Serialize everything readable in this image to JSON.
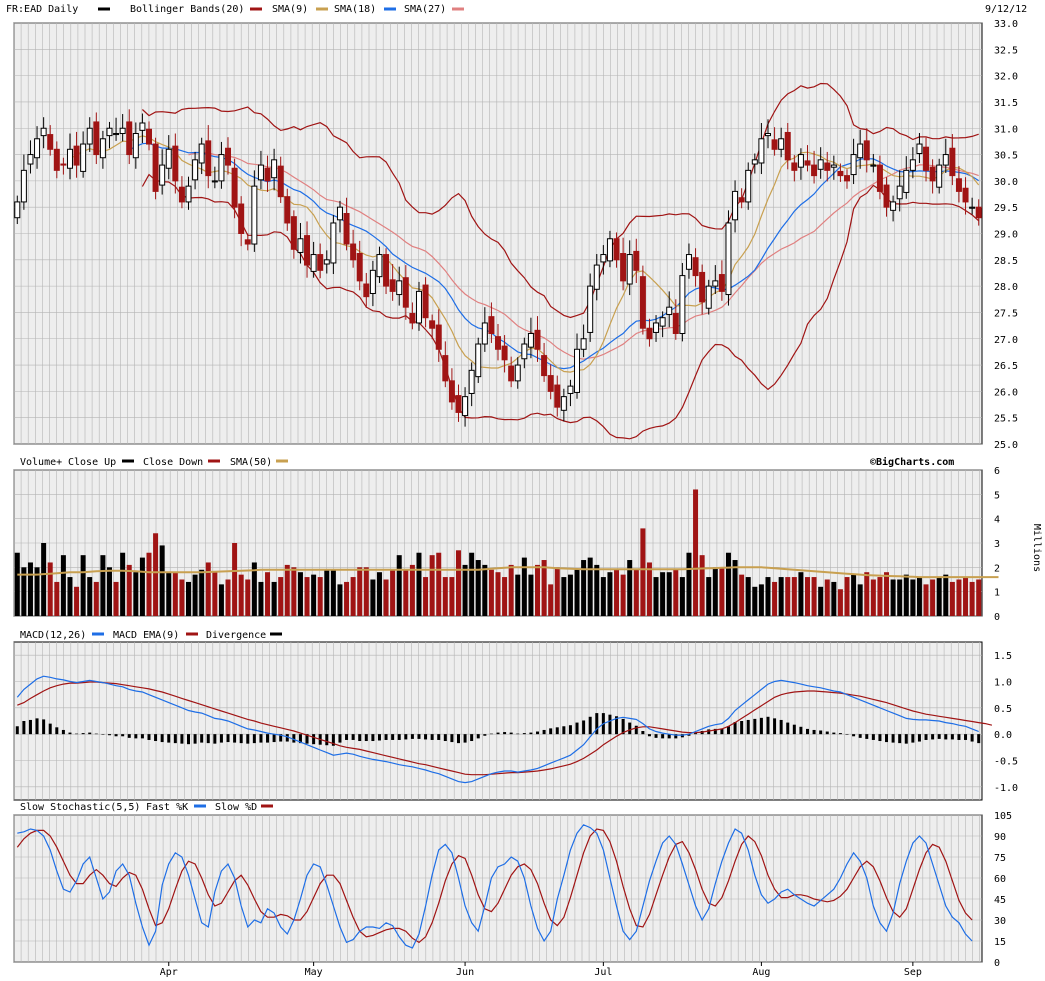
{
  "header": {
    "symbol_label": "FR:EAD Daily",
    "date": "9/12/12",
    "legend": [
      {
        "label": "Bollinger Bands(20)",
        "color": "#a01414"
      },
      {
        "label": "SMA(9)",
        "color": "#c8a050"
      },
      {
        "label": "SMA(18)",
        "color": "#1e6ee6"
      },
      {
        "label": "SMA(27)",
        "color": "#e08080"
      }
    ]
  },
  "watermark": "©BigCharts.com",
  "colors": {
    "up": "#000000",
    "down": "#a01414",
    "grid": "#b4b4b4",
    "panel_bg": "#eeeeee",
    "sma50": "#c8a050",
    "macd": "#1e6ee6",
    "signal": "#a01414",
    "fastk": "#1e6ee6",
    "slowd": "#a01414"
  },
  "x_axis": {
    "labels": [
      {
        "label": "Apr",
        "index": 23
      },
      {
        "label": "May",
        "index": 45
      },
      {
        "label": "Jun",
        "index": 68
      },
      {
        "label": "Jul",
        "index": 89
      },
      {
        "label": "Aug",
        "index": 113
      },
      {
        "label": "Sep",
        "index": 136
      }
    ]
  },
  "chart_data": [
    {
      "type": "candlestick",
      "title": "FR:EAD Daily",
      "ylim": [
        25.0,
        33.0
      ],
      "yticks": [
        "25.0",
        "25.5",
        "26.0",
        "26.5",
        "27.0",
        "27.5",
        "28.0",
        "28.5",
        "29.0",
        "29.5",
        "30.0",
        "30.5",
        "31.0",
        "31.5",
        "32.0",
        "32.5",
        "33.0"
      ],
      "closes": [
        29.6,
        30.2,
        30.5,
        30.8,
        31.0,
        30.6,
        30.2,
        30.3,
        30.6,
        30.3,
        30.7,
        31.0,
        30.5,
        30.8,
        31.0,
        30.9,
        31.0,
        30.5,
        30.9,
        31.1,
        30.7,
        29.8,
        30.3,
        30.6,
        30.0,
        29.6,
        29.9,
        30.4,
        30.7,
        30.1,
        30.0,
        30.5,
        30.3,
        29.5,
        29.0,
        28.8,
        29.9,
        30.3,
        30.0,
        30.4,
        29.7,
        29.2,
        28.7,
        28.9,
        28.4,
        28.6,
        28.3,
        28.5,
        29.2,
        29.5,
        28.8,
        28.5,
        28.1,
        27.8,
        28.3,
        28.6,
        28.0,
        27.9,
        28.1,
        27.6,
        27.3,
        27.9,
        27.4,
        27.2,
        26.8,
        26.2,
        25.8,
        25.6,
        25.9,
        26.4,
        26.9,
        27.3,
        27.1,
        26.8,
        26.6,
        26.2,
        26.5,
        26.9,
        27.1,
        26.8,
        26.3,
        26.0,
        25.7,
        25.9,
        26.1,
        26.8,
        27.0,
        28.0,
        28.4,
        28.6,
        28.9,
        28.5,
        28.1,
        28.6,
        28.3,
        27.2,
        27.0,
        27.3,
        27.4,
        27.6,
        27.1,
        28.2,
        28.6,
        28.2,
        27.7,
        28.0,
        28.1,
        27.9,
        29.2,
        29.8,
        29.6,
        30.2,
        30.4,
        30.8,
        30.9,
        30.6,
        30.8,
        30.4,
        30.2,
        30.5,
        30.3,
        30.1,
        30.4,
        30.2,
        30.3,
        30.1,
        30.0,
        30.5,
        30.7,
        30.4,
        30.3,
        29.8,
        29.5,
        29.6,
        29.9,
        30.2,
        30.4,
        30.7,
        30.2,
        30.0,
        30.3,
        30.5,
        30.1,
        29.8,
        29.6,
        29.5,
        29.3
      ],
      "series": [
        {
          "name": "SMA(9)",
          "color": "#c8a050"
        },
        {
          "name": "SMA(18)",
          "color": "#1e6ee6"
        },
        {
          "name": "SMA(27)",
          "color": "#e08080"
        },
        {
          "name": "Bollinger Bands(20)",
          "color": "#a01414"
        }
      ]
    },
    {
      "type": "bar",
      "title": "Volume+",
      "legend": [
        "Close Up",
        "Close Down",
        "SMA(50)"
      ],
      "ylabel": "Millions",
      "ylim": [
        0,
        6
      ],
      "yticks": [
        "0",
        "1",
        "2",
        "3",
        "4",
        "5",
        "6"
      ],
      "values": [
        2.6,
        2.0,
        2.2,
        2.0,
        3.0,
        2.2,
        1.4,
        2.5,
        1.6,
        1.2,
        2.5,
        1.6,
        1.4,
        2.5,
        2.0,
        1.4,
        2.6,
        2.1,
        1.8,
        2.4,
        2.6,
        3.4,
        2.9,
        1.8,
        1.8,
        1.5,
        1.4,
        1.7,
        1.9,
        2.2,
        1.8,
        1.3,
        1.5,
        3.0,
        1.7,
        1.5,
        2.2,
        1.4,
        1.8,
        1.4,
        1.6,
        2.1,
        2.0,
        1.8,
        1.6,
        1.7,
        1.6,
        1.9,
        1.9,
        1.3,
        1.4,
        1.6,
        2.0,
        2.0,
        1.5,
        1.8,
        1.5,
        1.9,
        2.5,
        1.9,
        2.1,
        2.6,
        1.6,
        2.5,
        2.6,
        1.6,
        1.6,
        2.7,
        2.1,
        2.6,
        2.3,
        2.1,
        1.9,
        1.8,
        1.6,
        2.1,
        1.7,
        2.4,
        1.7,
        2.1,
        2.3,
        1.3,
        2.0,
        1.6,
        1.7,
        1.9,
        2.3,
        2.4,
        2.1,
        1.6,
        1.8,
        1.9,
        1.7,
        2.3,
        1.9,
        3.6,
        2.2,
        1.6,
        1.8,
        1.8,
        1.9,
        1.6,
        2.6,
        5.2,
        2.5,
        1.6,
        2.0,
        2.0,
        2.6,
        2.3,
        1.7,
        1.6,
        1.2,
        1.3,
        1.6,
        1.4,
        1.6,
        1.6,
        1.6,
        1.8,
        1.6,
        1.6,
        1.2,
        1.5,
        1.4,
        1.1,
        1.6,
        1.7,
        1.3,
        1.8,
        1.5,
        1.6,
        1.8,
        1.5,
        1.5,
        1.7,
        1.5,
        1.6,
        1.3,
        1.5,
        1.6,
        1.7,
        1.4,
        1.5,
        1.6,
        1.4,
        1.5
      ],
      "sma50": [
        1.7,
        1.7,
        1.7,
        1.7,
        1.72,
        1.74,
        1.76,
        1.78,
        1.8,
        1.8,
        1.8,
        1.82,
        1.84,
        1.85,
        1.86,
        1.86,
        1.86,
        1.85,
        1.84,
        1.82,
        1.8,
        1.8,
        1.8,
        1.8,
        1.8,
        1.8,
        1.8,
        1.8,
        1.8,
        1.81,
        1.82,
        1.83,
        1.84,
        1.85,
        1.86,
        1.87,
        1.88,
        1.9,
        1.9,
        1.9,
        1.9,
        1.9,
        1.9,
        1.9,
        1.9,
        1.9,
        1.9,
        1.9,
        1.9,
        1.9,
        1.9,
        1.9,
        1.9,
        1.9,
        1.9,
        1.9,
        1.9,
        1.9,
        1.9,
        1.9,
        1.9,
        1.9,
        1.9,
        1.9,
        1.9,
        1.9,
        1.9,
        1.9,
        1.9,
        1.9,
        1.9,
        1.92,
        1.94,
        1.96,
        1.98,
        2.0,
        2.0,
        2.0,
        2.0,
        2.0,
        2.0,
        1.98,
        1.96,
        1.95,
        1.94,
        1.93,
        1.92,
        1.92,
        1.92,
        1.92,
        1.92,
        1.92,
        1.92,
        1.92,
        1.92,
        1.92,
        1.92,
        1.92,
        1.92,
        1.92,
        1.92,
        1.92,
        1.93,
        1.94,
        1.95,
        1.96,
        1.97,
        1.98,
        1.99,
        2.0,
        2.0,
        2.0,
        2.0,
        2.0,
        1.98,
        1.96,
        1.94,
        1.92,
        1.9,
        1.88,
        1.86,
        1.84,
        1.82,
        1.8,
        1.78,
        1.76,
        1.74,
        1.72,
        1.7,
        1.68,
        1.67,
        1.66,
        1.65,
        1.64,
        1.63,
        1.62,
        1.61,
        1.6,
        1.6,
        1.6,
        1.6,
        1.6,
        1.6,
        1.6,
        1.6,
        1.6,
        1.6,
        1.6,
        1.6,
        1.6
      ]
    },
    {
      "type": "line",
      "title": "MACD(12,26)",
      "legend": [
        "MACD EMA(9)",
        "Divergence"
      ],
      "ylim": [
        -1.25,
        1.75
      ],
      "yticks": [
        "-1.0",
        "-0.5",
        "0.0",
        "0.5",
        "1.0",
        "1.5"
      ],
      "macd": [
        0.7,
        0.85,
        0.95,
        1.05,
        1.1,
        1.08,
        1.05,
        1.03,
        1.0,
        0.98,
        1.0,
        1.02,
        1.0,
        0.98,
        0.95,
        0.92,
        0.9,
        0.85,
        0.82,
        0.8,
        0.75,
        0.7,
        0.65,
        0.6,
        0.55,
        0.5,
        0.45,
        0.42,
        0.4,
        0.35,
        0.3,
        0.28,
        0.25,
        0.2,
        0.15,
        0.1,
        0.08,
        0.05,
        0.02,
        0.0,
        -0.02,
        -0.05,
        -0.1,
        -0.15,
        -0.2,
        -0.25,
        -0.3,
        -0.35,
        -0.4,
        -0.38,
        -0.36,
        -0.38,
        -0.42,
        -0.45,
        -0.48,
        -0.5,
        -0.52,
        -0.55,
        -0.58,
        -0.6,
        -0.62,
        -0.65,
        -0.68,
        -0.72,
        -0.75,
        -0.8,
        -0.85,
        -0.9,
        -0.92,
        -0.9,
        -0.85,
        -0.8,
        -0.75,
        -0.72,
        -0.7,
        -0.7,
        -0.72,
        -0.7,
        -0.68,
        -0.65,
        -0.6,
        -0.55,
        -0.5,
        -0.45,
        -0.4,
        -0.3,
        -0.2,
        -0.05,
        0.1,
        0.2,
        0.25,
        0.3,
        0.32,
        0.3,
        0.28,
        0.2,
        0.1,
        0.05,
        0.02,
        0.0,
        -0.02,
        -0.02,
        0.0,
        0.05,
        0.1,
        0.15,
        0.18,
        0.2,
        0.3,
        0.45,
        0.55,
        0.65,
        0.75,
        0.85,
        0.95,
        1.0,
        1.02,
        1.0,
        0.98,
        0.95,
        0.92,
        0.9,
        0.88,
        0.85,
        0.82,
        0.8,
        0.75,
        0.7,
        0.65,
        0.6,
        0.55,
        0.5,
        0.45,
        0.4,
        0.35,
        0.3,
        0.28,
        0.27,
        0.27,
        0.26,
        0.25,
        0.22,
        0.2,
        0.17,
        0.15,
        0.1,
        0.05
      ],
      "signal": [
        0.55,
        0.6,
        0.68,
        0.75,
        0.82,
        0.88,
        0.92,
        0.95,
        0.97,
        0.97,
        0.98,
        0.99,
        0.99,
        0.98,
        0.97,
        0.96,
        0.94,
        0.92,
        0.9,
        0.88,
        0.86,
        0.83,
        0.8,
        0.76,
        0.72,
        0.68,
        0.64,
        0.6,
        0.56,
        0.52,
        0.48,
        0.44,
        0.4,
        0.36,
        0.32,
        0.28,
        0.25,
        0.21,
        0.18,
        0.15,
        0.12,
        0.09,
        0.06,
        0.02,
        -0.02,
        -0.06,
        -0.1,
        -0.14,
        -0.18,
        -0.22,
        -0.25,
        -0.27,
        -0.29,
        -0.32,
        -0.35,
        -0.38,
        -0.41,
        -0.44,
        -0.47,
        -0.5,
        -0.53,
        -0.56,
        -0.58,
        -0.61,
        -0.64,
        -0.67,
        -0.7,
        -0.73,
        -0.76,
        -0.77,
        -0.77,
        -0.77,
        -0.76,
        -0.75,
        -0.74,
        -0.73,
        -0.73,
        -0.72,
        -0.71,
        -0.7,
        -0.68,
        -0.66,
        -0.63,
        -0.6,
        -0.57,
        -0.52,
        -0.46,
        -0.38,
        -0.3,
        -0.2,
        -0.12,
        -0.04,
        0.03,
        0.08,
        0.12,
        0.14,
        0.14,
        0.12,
        0.1,
        0.08,
        0.06,
        0.04,
        0.03,
        0.03,
        0.04,
        0.06,
        0.08,
        0.1,
        0.15,
        0.22,
        0.3,
        0.38,
        0.46,
        0.54,
        0.62,
        0.7,
        0.75,
        0.78,
        0.8,
        0.81,
        0.82,
        0.82,
        0.81,
        0.8,
        0.79,
        0.78,
        0.76,
        0.74,
        0.72,
        0.69,
        0.66,
        0.63,
        0.6,
        0.56,
        0.52,
        0.48,
        0.44,
        0.41,
        0.38,
        0.36,
        0.34,
        0.32,
        0.3,
        0.28,
        0.26,
        0.24,
        0.22,
        0.2,
        0.17
      ]
    },
    {
      "type": "line",
      "title": "Slow Stochastic(5,5)",
      "legend": [
        "Fast %K",
        "Slow %D"
      ],
      "ylim": [
        0,
        105
      ],
      "yticks": [
        "0",
        "15",
        "30",
        "45",
        "60",
        "75",
        "90",
        "105"
      ],
      "fastk": [
        92,
        93,
        95,
        94,
        90,
        80,
        65,
        52,
        50,
        58,
        70,
        75,
        60,
        45,
        50,
        65,
        70,
        62,
        42,
        25,
        12,
        22,
        55,
        70,
        78,
        75,
        62,
        45,
        28,
        25,
        50,
        65,
        70,
        60,
        40,
        25,
        30,
        28,
        38,
        35,
        25,
        20,
        30,
        45,
        62,
        70,
        68,
        55,
        40,
        25,
        14,
        16,
        22,
        25,
        25,
        24,
        28,
        26,
        18,
        12,
        10,
        20,
        40,
        62,
        80,
        84,
        78,
        60,
        40,
        28,
        22,
        40,
        60,
        68,
        70,
        75,
        72,
        60,
        40,
        24,
        15,
        22,
        45,
        62,
        80,
        92,
        98,
        96,
        92,
        80,
        60,
        40,
        22,
        16,
        22,
        40,
        58,
        72,
        85,
        90,
        84,
        70,
        55,
        40,
        30,
        38,
        56,
        72,
        85,
        95,
        92,
        80,
        62,
        48,
        42,
        45,
        50,
        52,
        48,
        45,
        42,
        40,
        44,
        48,
        52,
        60,
        70,
        78,
        72,
        60,
        40,
        28,
        22,
        35,
        56,
        72,
        85,
        90,
        85,
        70,
        55,
        40,
        32,
        28,
        20,
        15
      ],
      "slowd": [
        82,
        88,
        92,
        94,
        94,
        90,
        82,
        72,
        62,
        56,
        56,
        62,
        66,
        62,
        56,
        54,
        60,
        64,
        62,
        52,
        38,
        26,
        28,
        38,
        52,
        65,
        72,
        70,
        60,
        48,
        40,
        42,
        50,
        58,
        62,
        55,
        45,
        36,
        32,
        32,
        34,
        33,
        30,
        30,
        36,
        46,
        56,
        62,
        62,
        56,
        44,
        32,
        22,
        18,
        19,
        21,
        23,
        24,
        24,
        22,
        17,
        14,
        18,
        28,
        42,
        58,
        70,
        76,
        74,
        62,
        48,
        38,
        36,
        42,
        52,
        62,
        68,
        70,
        66,
        56,
        42,
        30,
        26,
        32,
        46,
        62,
        78,
        90,
        95,
        94,
        86,
        72,
        54,
        38,
        26,
        25,
        34,
        48,
        62,
        75,
        84,
        86,
        78,
        66,
        52,
        42,
        40,
        46,
        58,
        72,
        84,
        90,
        86,
        76,
        62,
        52,
        46,
        46,
        48,
        48,
        47,
        45,
        44,
        43,
        44,
        47,
        52,
        60,
        68,
        72,
        68,
        58,
        46,
        36,
        32,
        38,
        52,
        66,
        78,
        84,
        82,
        72,
        58,
        44,
        35,
        30
      ]
    }
  ],
  "panels": {
    "volume": {
      "title": "Volume+",
      "close_up": "Close Up",
      "close_down": "Close Down",
      "sma": "SMA(50)",
      "unit": "Millions"
    },
    "macd": {
      "title": "MACD(12,26)",
      "ema": "MACD EMA(9)",
      "divergence": "Divergence"
    },
    "stoch": {
      "title": "Slow Stochastic(5,5)",
      "fastk": "Fast %K",
      "slowd": "Slow %D"
    }
  }
}
